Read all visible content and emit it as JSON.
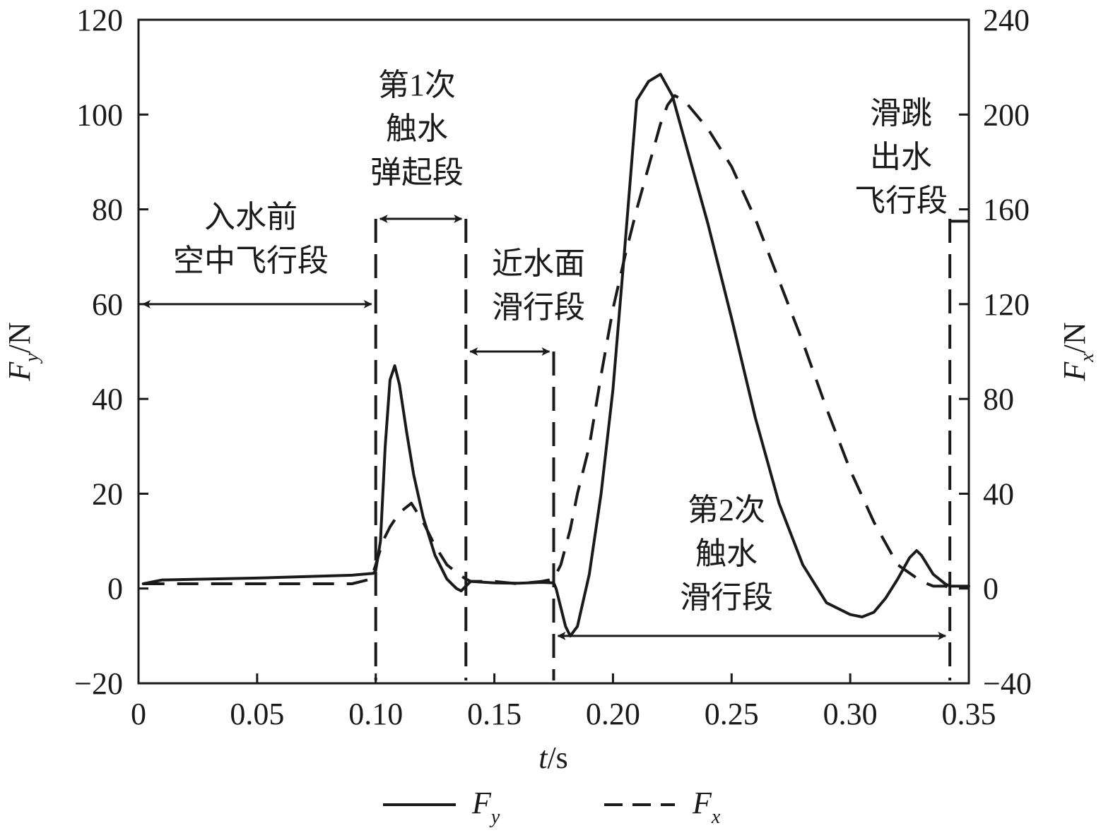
{
  "chart_data": {
    "type": "line",
    "x_axis": {
      "label_main": "t",
      "label_unit": "/s",
      "range": [
        0,
        0.35
      ],
      "ticks": [
        0,
        0.05,
        0.1,
        0.15,
        0.2,
        0.25,
        0.3,
        0.35
      ],
      "tick_labels": [
        "0",
        "0.05",
        "0.10",
        "0.15",
        "0.20",
        "0.25",
        "0.30",
        "0.35"
      ]
    },
    "y_left": {
      "label_main": "F",
      "label_sub": "y",
      "label_unit": "/N",
      "range": [
        -20,
        120
      ],
      "ticks": [
        -20,
        0,
        20,
        40,
        60,
        80,
        100,
        120
      ],
      "tick_labels": [
        "−20",
        "0",
        "20",
        "40",
        "60",
        "80",
        "100",
        "120"
      ]
    },
    "y_right": {
      "label_main": "F",
      "label_sub": "x",
      "label_unit": "/N",
      "range": [
        -40,
        240
      ],
      "ticks": [
        -40,
        0,
        40,
        80,
        120,
        160,
        200,
        240
      ],
      "tick_labels": [
        "−40",
        "0",
        "40",
        "80",
        "120",
        "160",
        "200",
        "240"
      ]
    },
    "grid": false,
    "legend_position": "bottom-center",
    "series": [
      {
        "name": "F",
        "name_sub": "y",
        "axis": "left",
        "style": "solid",
        "x": [
          0.002,
          0.01,
          0.05,
          0.09,
          0.099,
          0.1,
          0.102,
          0.104,
          0.106,
          0.108,
          0.11,
          0.113,
          0.116,
          0.12,
          0.125,
          0.13,
          0.134,
          0.136,
          0.138,
          0.14,
          0.15,
          0.16,
          0.17,
          0.175,
          0.176,
          0.178,
          0.18,
          0.182,
          0.185,
          0.19,
          0.195,
          0.2,
          0.205,
          0.21,
          0.215,
          0.22,
          0.225,
          0.23,
          0.24,
          0.25,
          0.26,
          0.27,
          0.28,
          0.29,
          0.3,
          0.305,
          0.31,
          0.315,
          0.32,
          0.325,
          0.328,
          0.33,
          0.335,
          0.34,
          0.342,
          0.35
        ],
        "values": [
          1,
          1.8,
          2.2,
          2.8,
          3.2,
          3.8,
          10,
          30,
          44,
          47,
          43,
          33,
          24,
          15,
          7,
          2,
          0,
          -0.5,
          0.5,
          1.5,
          1.2,
          1.1,
          1.3,
          1.2,
          0,
          -4,
          -8,
          -10,
          -8,
          3,
          20,
          42,
          72,
          103,
          107,
          108.5,
          104,
          95,
          77,
          57,
          36,
          18,
          5,
          -3,
          -5.5,
          -6,
          -5,
          -2,
          2,
          6.5,
          8,
          7,
          3,
          1,
          0.5,
          0.5
        ]
      },
      {
        "name": "F",
        "name_sub": "x",
        "axis": "right",
        "style": "dashed",
        "x": [
          0.002,
          0.01,
          0.05,
          0.09,
          0.098,
          0.1,
          0.103,
          0.106,
          0.11,
          0.115,
          0.12,
          0.125,
          0.13,
          0.135,
          0.138,
          0.14,
          0.15,
          0.16,
          0.17,
          0.175,
          0.178,
          0.182,
          0.185,
          0.19,
          0.195,
          0.2,
          0.205,
          0.21,
          0.215,
          0.22,
          0.223,
          0.226,
          0.23,
          0.24,
          0.25,
          0.26,
          0.27,
          0.28,
          0.29,
          0.3,
          0.31,
          0.32,
          0.33,
          0.335,
          0.34,
          0.342,
          0.35
        ],
        "values": [
          2,
          2,
          2,
          2,
          4,
          10,
          20,
          26,
          32,
          36,
          28,
          18,
          10,
          6,
          4,
          3,
          3,
          2,
          3,
          4,
          10,
          25,
          40,
          60,
          90,
          118,
          140,
          160,
          178,
          196,
          204,
          208,
          206,
          194,
          178,
          156,
          130,
          104,
          76,
          50,
          28,
          10,
          3,
          1,
          1,
          0.5,
          0.5
        ]
      }
    ],
    "annotations": [
      {
        "id": "air",
        "lines": [
          "入水前",
          "空中飞行段"
        ],
        "span_x": [
          0,
          0.1
        ]
      },
      {
        "id": "contact1",
        "lines": [
          "第1次",
          "触水",
          "弹起段"
        ],
        "span_x": [
          0.1,
          0.138
        ]
      },
      {
        "id": "near",
        "lines": [
          "近水面",
          "滑行段"
        ],
        "span_x": [
          0.138,
          0.175
        ]
      },
      {
        "id": "contact2",
        "lines": [
          "第2次",
          "触水",
          "滑行段"
        ],
        "span_x": [
          0.175,
          0.342
        ]
      },
      {
        "id": "exit",
        "lines": [
          "滑跳",
          "出水",
          "飞行段"
        ],
        "span_x": [
          0.342,
          0.35
        ]
      }
    ],
    "phase_boundaries_x": [
      0.1,
      0.138,
      0.175,
      0.342
    ]
  }
}
